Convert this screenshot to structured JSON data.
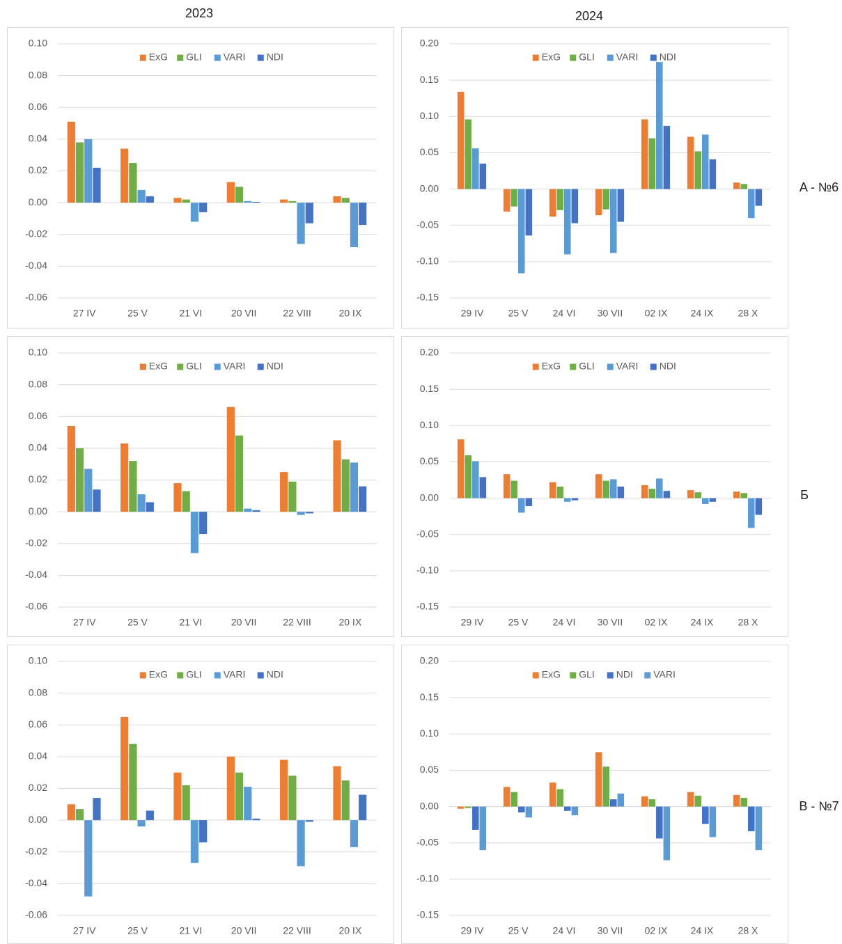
{
  "column_titles": [
    "2023",
    "2024"
  ],
  "row_labels": [
    "A - №6",
    "Б",
    "В - №7"
  ],
  "chart_data": [
    {
      "type": "bar",
      "categories": [
        "27 IV",
        "25 V",
        "21 VI",
        "20 VII",
        "22 VIII",
        "20 IX"
      ],
      "ylim": [
        -0.06,
        0.1
      ],
      "yticks": [
        {
          "value": -0.06,
          "label": "-0.06"
        },
        {
          "value": -0.04,
          "label": "-0.04"
        },
        {
          "value": -0.02,
          "label": "-0.02"
        },
        {
          "value": 0,
          "label": "0.00"
        },
        {
          "value": 0.02,
          "label": "0.02"
        },
        {
          "value": 0.04,
          "label": "0.04"
        },
        {
          "value": 0.06,
          "label": "0.06"
        },
        {
          "value": 0.08,
          "label": "0.08"
        },
        {
          "value": 0.1,
          "label": "0.10"
        }
      ],
      "grid": true,
      "legend": "top",
      "series": [
        {
          "name": "ExG",
          "color": "#ed7d31",
          "values": [
            0.051,
            0.034,
            0.003,
            0.013,
            0.002,
            0.004
          ]
        },
        {
          "name": "GLI",
          "color": "#70ad47",
          "values": [
            0.038,
            0.025,
            0.002,
            0.01,
            0.001,
            0.003
          ]
        },
        {
          "name": "VARI",
          "color": "#5b9bd5",
          "values": [
            0.04,
            0.008,
            -0.012,
            0.001,
            -0.026,
            -0.028
          ]
        },
        {
          "name": "NDI",
          "color": "#4472c4",
          "values": [
            0.022,
            0.004,
            -0.006,
            0.0005,
            -0.013,
            -0.014
          ]
        }
      ]
    },
    {
      "type": "bar",
      "categories": [
        "29 IV",
        "25 V",
        "24 VI",
        "30 VII",
        "02 IX",
        "24 IX",
        "28 X"
      ],
      "ylim": [
        -0.15,
        0.2
      ],
      "yticks": [
        {
          "value": -0.15,
          "label": "-0.15"
        },
        {
          "value": -0.1,
          "label": "-0.10"
        },
        {
          "value": -0.05,
          "label": "-0.05"
        },
        {
          "value": 0,
          "label": "0.00"
        },
        {
          "value": 0.05,
          "label": "0.05"
        },
        {
          "value": 0.1,
          "label": "0.10"
        },
        {
          "value": 0.15,
          "label": "0.15"
        },
        {
          "value": 0.2,
          "label": "0.20"
        }
      ],
      "grid": true,
      "legend": "top",
      "series": [
        {
          "name": "ExG",
          "color": "#ed7d31",
          "values": [
            0.134,
            -0.031,
            -0.038,
            -0.036,
            0.096,
            0.072,
            0.009
          ]
        },
        {
          "name": "GLI",
          "color": "#70ad47",
          "values": [
            0.096,
            -0.024,
            -0.029,
            -0.028,
            0.07,
            0.052,
            0.007
          ]
        },
        {
          "name": "VARI",
          "color": "#5b9bd5",
          "values": [
            0.056,
            -0.116,
            -0.09,
            -0.088,
            0.175,
            0.075,
            -0.04
          ]
        },
        {
          "name": "NDI",
          "color": "#4472c4",
          "values": [
            0.035,
            -0.064,
            -0.047,
            -0.045,
            0.087,
            0.041,
            -0.023
          ]
        }
      ]
    },
    {
      "type": "bar",
      "categories": [
        "27 IV",
        "25 V",
        "21 VI",
        "20 VII",
        "22 VIII",
        "20 IX"
      ],
      "ylim": [
        -0.06,
        0.1
      ],
      "yticks": [
        {
          "value": -0.06,
          "label": "-0.06"
        },
        {
          "value": -0.04,
          "label": "-0.04"
        },
        {
          "value": -0.02,
          "label": "-0.02"
        },
        {
          "value": 0,
          "label": "0.00"
        },
        {
          "value": 0.02,
          "label": "0.02"
        },
        {
          "value": 0.04,
          "label": "0.04"
        },
        {
          "value": 0.06,
          "label": "0.06"
        },
        {
          "value": 0.08,
          "label": "0.08"
        },
        {
          "value": 0.1,
          "label": "0.10"
        }
      ],
      "grid": true,
      "legend": "top",
      "series": [
        {
          "name": "ExG",
          "color": "#ed7d31",
          "values": [
            0.054,
            0.043,
            0.018,
            0.066,
            0.025,
            0.045
          ]
        },
        {
          "name": "GLI",
          "color": "#70ad47",
          "values": [
            0.04,
            0.032,
            0.013,
            0.048,
            0.019,
            0.033
          ]
        },
        {
          "name": "VARI",
          "color": "#5b9bd5",
          "values": [
            0.027,
            0.011,
            -0.026,
            0.002,
            -0.002,
            0.031
          ]
        },
        {
          "name": "NDI",
          "color": "#4472c4",
          "values": [
            0.014,
            0.006,
            -0.014,
            0.001,
            -0.001,
            0.016
          ]
        }
      ]
    },
    {
      "type": "bar",
      "categories": [
        "29 IV",
        "25 V",
        "24 VI",
        "30 VII",
        "02 IX",
        "24 IX",
        "28 X"
      ],
      "ylim": [
        -0.15,
        0.2
      ],
      "yticks": [
        {
          "value": -0.15,
          "label": "-0.15"
        },
        {
          "value": -0.1,
          "label": "-0.10"
        },
        {
          "value": -0.05,
          "label": "-0.05"
        },
        {
          "value": 0,
          "label": "0.00"
        },
        {
          "value": 0.05,
          "label": "0.05"
        },
        {
          "value": 0.1,
          "label": "0.10"
        },
        {
          "value": 0.15,
          "label": "0.15"
        },
        {
          "value": 0.2,
          "label": "0.20"
        }
      ],
      "grid": true,
      "legend": "top",
      "series": [
        {
          "name": "ExG",
          "color": "#ed7d31",
          "values": [
            0.081,
            0.033,
            0.022,
            0.033,
            0.018,
            0.011,
            0.009
          ]
        },
        {
          "name": "GLI",
          "color": "#70ad47",
          "values": [
            0.059,
            0.024,
            0.016,
            0.024,
            0.013,
            0.008,
            0.007
          ]
        },
        {
          "name": "VARI",
          "color": "#5b9bd5",
          "values": [
            0.051,
            -0.02,
            -0.005,
            0.026,
            0.027,
            -0.008,
            -0.041
          ]
        },
        {
          "name": "NDI",
          "color": "#4472c4",
          "values": [
            0.029,
            -0.011,
            -0.003,
            0.016,
            0.01,
            -0.005,
            -0.023
          ]
        }
      ]
    },
    {
      "type": "bar",
      "categories": [
        "27 IV",
        "25 V",
        "21 VI",
        "20 VII",
        "22 VIII",
        "20 IX"
      ],
      "ylim": [
        -0.06,
        0.1
      ],
      "yticks": [
        {
          "value": -0.06,
          "label": "-0.06"
        },
        {
          "value": -0.04,
          "label": "-0.04"
        },
        {
          "value": -0.02,
          "label": "-0.02"
        },
        {
          "value": 0,
          "label": "0.00"
        },
        {
          "value": 0.02,
          "label": "0.02"
        },
        {
          "value": 0.04,
          "label": "0.04"
        },
        {
          "value": 0.06,
          "label": "0.06"
        },
        {
          "value": 0.08,
          "label": "0.08"
        },
        {
          "value": 0.1,
          "label": "0.10"
        }
      ],
      "grid": true,
      "legend": "top",
      "series": [
        {
          "name": "ExG",
          "color": "#ed7d31",
          "values": [
            0.01,
            0.065,
            0.03,
            0.04,
            0.038,
            0.034
          ]
        },
        {
          "name": "GLI",
          "color": "#70ad47",
          "values": [
            0.007,
            0.048,
            0.022,
            0.03,
            0.028,
            0.025
          ]
        },
        {
          "name": "VARI",
          "color": "#5b9bd5",
          "values": [
            -0.048,
            -0.004,
            -0.027,
            0.021,
            -0.029,
            -0.017
          ]
        },
        {
          "name": "NDI",
          "color": "#4472c4",
          "values": [
            0.014,
            0.006,
            -0.014,
            0.001,
            -0.001,
            0.016
          ]
        }
      ]
    },
    {
      "type": "bar",
      "categories": [
        "29 IV",
        "25 V",
        "24 VI",
        "30 VII",
        "02 IX",
        "24 IX",
        "28 X"
      ],
      "ylim": [
        -0.15,
        0.2
      ],
      "yticks": [
        {
          "value": -0.15,
          "label": "-0.15"
        },
        {
          "value": -0.1,
          "label": "-0.10"
        },
        {
          "value": -0.05,
          "label": "-0.05"
        },
        {
          "value": 0,
          "label": "0.00"
        },
        {
          "value": 0.05,
          "label": "0.05"
        },
        {
          "value": 0.1,
          "label": "0.10"
        },
        {
          "value": 0.15,
          "label": "0.15"
        },
        {
          "value": 0.2,
          "label": "0.20"
        }
      ],
      "grid": true,
      "legend": "top",
      "series": [
        {
          "name": "ExG",
          "color": "#ed7d31",
          "values": [
            -0.003,
            0.027,
            0.033,
            0.075,
            0.014,
            0.02,
            0.016
          ]
        },
        {
          "name": "GLI",
          "color": "#70ad47",
          "values": [
            -0.002,
            0.02,
            0.024,
            0.055,
            0.01,
            0.015,
            0.012
          ]
        },
        {
          "name": "NDI",
          "color": "#4472c4",
          "values": [
            -0.032,
            -0.008,
            -0.006,
            0.01,
            -0.044,
            -0.024,
            -0.034
          ]
        },
        {
          "name": "VARI",
          "color": "#5b9bd5",
          "values": [
            -0.06,
            -0.015,
            -0.012,
            0.018,
            -0.074,
            -0.042,
            -0.06
          ]
        }
      ]
    }
  ]
}
